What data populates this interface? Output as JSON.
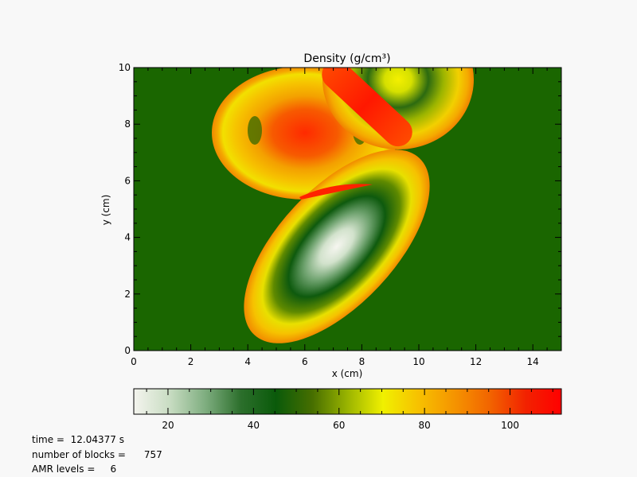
{
  "chart_data": {
    "type": "heatmap",
    "title": "Density (g/cm³)",
    "xlabel": "x (cm)",
    "ylabel": "y (cm)",
    "xlim": [
      0,
      15
    ],
    "ylim": [
      0,
      10
    ],
    "x_ticks": [
      "0",
      "2",
      "4",
      "6",
      "8",
      "10",
      "12",
      "14"
    ],
    "y_ticks": [
      "0",
      "2",
      "4",
      "6",
      "8",
      "10"
    ],
    "background_density": 28,
    "features": [
      {
        "name": "upper-left blob",
        "center": [
          6.0,
          7.8
        ],
        "semi_axes": [
          3.35,
          2.3
        ],
        "peak_density": 100,
        "shell_density": 50
      },
      {
        "name": "upper-right blob",
        "center": [
          9.3,
          9.7
        ],
        "semi_axes": [
          3.0,
          2.4
        ],
        "core_density": 45,
        "shell_density": 50
      },
      {
        "name": "lower blob",
        "center": [
          7.0,
          3.9
        ],
        "semi_axes": [
          4.0,
          2.1
        ],
        "core_density": 12,
        "shell_density": 52
      },
      {
        "name": "collision front",
        "center": [
          8.2,
          8.5
        ],
        "peak_density": 110
      }
    ],
    "colorbar": {
      "range": [
        12,
        112
      ],
      "ticks": [
        "20",
        "40",
        "60",
        "80",
        "100"
      ],
      "ticks_values": [
        20,
        40,
        60,
        80,
        100
      ],
      "colors": [
        "#f4f4ee",
        "#c9ddc3",
        "#7fae80",
        "#2c6f2c",
        "#0a5a0a",
        "#466e00",
        "#9ab400",
        "#f0f000",
        "#f7c000",
        "#f59400",
        "#f26400",
        "#f22200",
        "#ff0000"
      ]
    }
  },
  "info": {
    "time_label": "time =",
    "time_value": "12.04377 s",
    "blocks_label": "number of blocks =",
    "blocks_value": "757",
    "amr_label": "AMR levels =",
    "amr_value": "6"
  }
}
